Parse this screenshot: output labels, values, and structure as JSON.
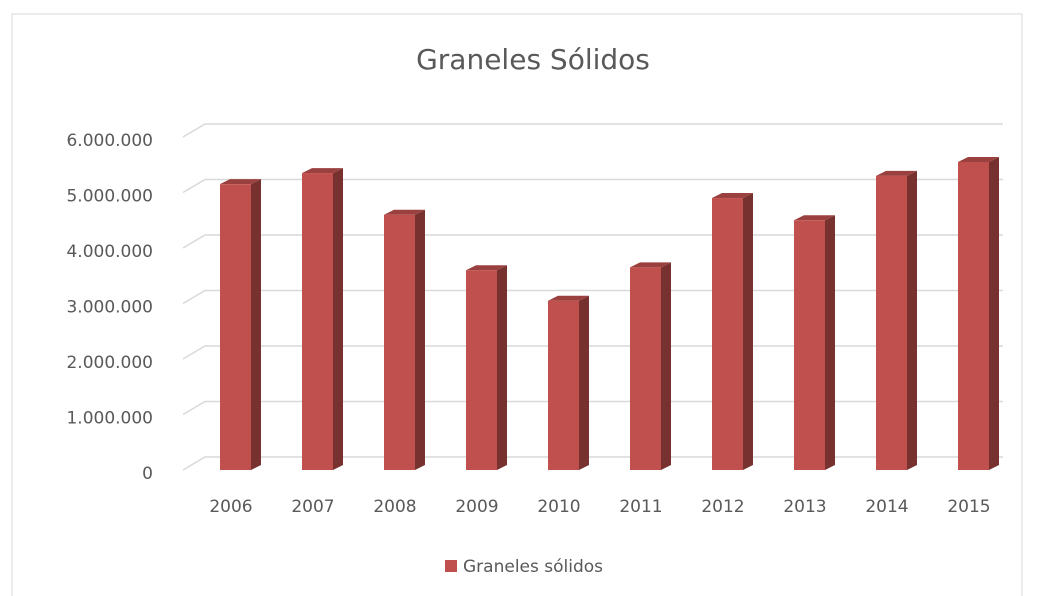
{
  "chart_data": {
    "type": "bar3d",
    "title": "Graneles Sólidos",
    "categories": [
      "2006",
      "2007",
      "2008",
      "2009",
      "2010",
      "2011",
      "2012",
      "2013",
      "2014",
      "2015"
    ],
    "series": [
      {
        "name": "Graneles sólidos",
        "color": "#c0504d",
        "values": [
          5150000,
          5350000,
          4600000,
          3600000,
          3050000,
          3650000,
          4900000,
          4500000,
          5300000,
          5550000
        ]
      }
    ],
    "ylim": [
      0,
      6000000
    ],
    "yticks": [
      0,
      {
        "value": 1000000,
        "label": "1.000.000"
      },
      {
        "value": 2000000,
        "label": "2.000.000"
      },
      {
        "value": 3000000,
        "label": "3.000.000"
      },
      {
        "value": 4000000,
        "label": "4.000.000"
      },
      {
        "value": 5000000,
        "label": "5.000.000"
      },
      {
        "value": 6000000,
        "label": "6.000.000"
      }
    ],
    "grid": true,
    "legend": "bottom"
  }
}
